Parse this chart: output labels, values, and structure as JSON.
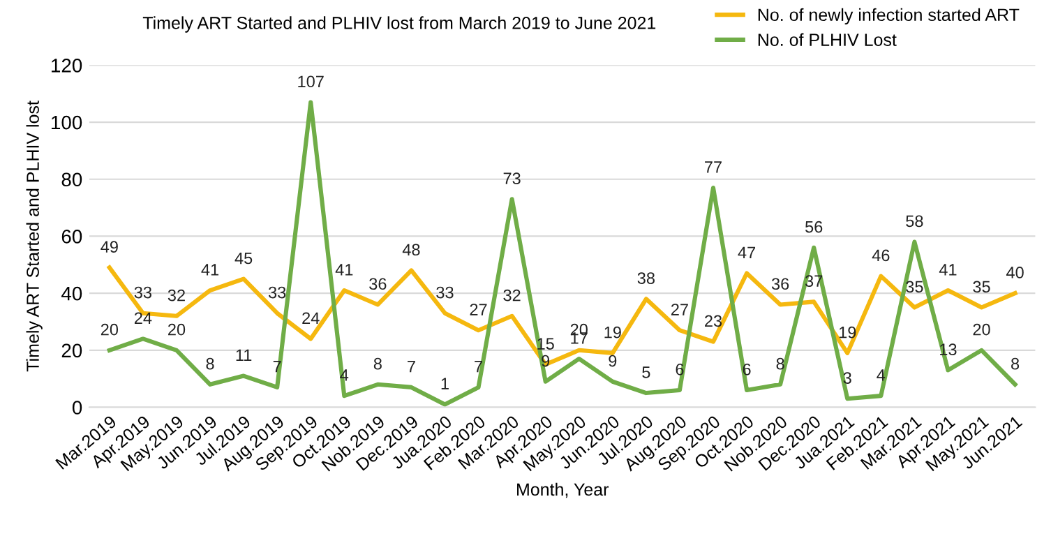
{
  "chart_data": {
    "type": "line",
    "title": "Timely ART Started and PLHIV lost from March 2019 to June 2021",
    "xlabel": "Month, Year",
    "ylabel": "Timely ART Started and PLHIV lost",
    "categories": [
      "Mar.2019",
      "Apr.2019",
      "May.2019",
      "Jun.2019",
      "Jul.2019",
      "Aug.2019",
      "Sep.2019",
      "Oct.2019",
      "Nob.2019",
      "Dec.2019",
      "Jua.2020",
      "Feb.2020",
      "Mar.2020",
      "Apr.2020",
      "May.2020",
      "Jun.2020",
      "Jul.2020",
      "Aug.2020",
      "Sep.2020",
      "Oct.2020",
      "Nob.2020",
      "Dec.2020",
      "Jua.2021",
      "Feb.2021",
      "Mar.2021",
      "Apr.2021",
      "May.2021",
      "Jun.2021"
    ],
    "series": [
      {
        "name": "No. of newly infection started ART",
        "color": "#f5b80f",
        "values": [
          49,
          33,
          32,
          41,
          45,
          33,
          24,
          41,
          36,
          48,
          33,
          27,
          32,
          15,
          20,
          19,
          38,
          27,
          23,
          47,
          36,
          37,
          19,
          46,
          35,
          41,
          35,
          40
        ]
      },
      {
        "name": "No. of PLHIV Lost",
        "color": "#70ad47",
        "values": [
          20,
          24,
          20,
          8,
          11,
          7,
          107,
          4,
          8,
          7,
          1,
          7,
          73,
          9,
          17,
          9,
          5,
          6,
          77,
          6,
          8,
          56,
          3,
          4,
          58,
          13,
          20,
          8
        ]
      }
    ],
    "ylim": [
      0,
      120
    ],
    "yticks": [
      0,
      20,
      40,
      60,
      80,
      100,
      120
    ],
    "grid": "y",
    "legend": "top right",
    "data_labels": true,
    "marker": "none",
    "line_style": "solid"
  }
}
